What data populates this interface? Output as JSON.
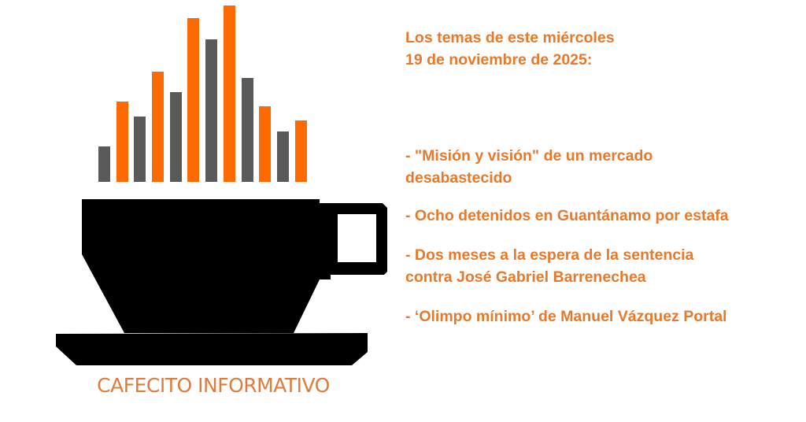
{
  "logo": {
    "name": "CAFECITO INFORMATIVO",
    "colors": {
      "orange": "#ff6a00",
      "gray": "#5a5a5a",
      "cup": "#000000",
      "text": "#e07b39"
    }
  },
  "headline": {
    "line1": "Los temas de este miércoles",
    "line2": "19 de noviembre de 2025:"
  },
  "topics": [
    {
      "line1": " - \"Misión y visión\" de un mercado",
      "line2": "desabastecido"
    },
    {
      "line1": "- Ocho detenidos en Guantánamo por estafa"
    },
    {
      "line1": "- Dos meses a la espera de la sentencia",
      "line2": "contra José Gabriel Barrenechea"
    },
    {
      "line1": "- ‘Olimpo mínimo’ de Manuel Vázquez Portal"
    }
  ],
  "accent_color": "#e8782a"
}
